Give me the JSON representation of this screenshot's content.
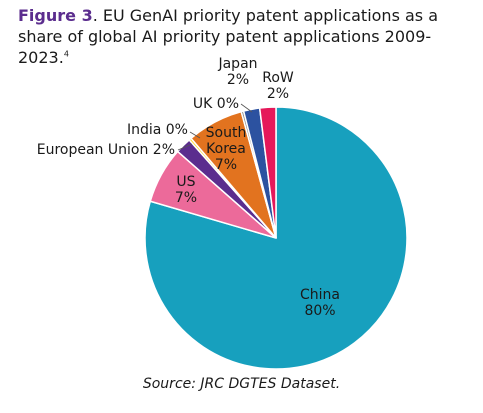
{
  "figure": {
    "label": "Figure 3",
    "title_rest": ". EU GenAI priority patent applications as a share of global AI priority patent applications 2009-2023.",
    "footnote_mark": "4",
    "source": "Source: JRC DGTES Dataset."
  },
  "chart_data": {
    "type": "pie",
    "title": "Figure 3. EU GenAI priority patent applications as a share of global AI priority patent applications 2009-2023.",
    "slices": [
      {
        "label": "China",
        "value": 80,
        "value_label": "80%",
        "color": "#17a0be"
      },
      {
        "label": "US",
        "value": 7,
        "value_label": "7%",
        "color": "#ec6a9a"
      },
      {
        "label": "European Union",
        "value": 2,
        "value_label": "2%",
        "color": "#5b2d8e"
      },
      {
        "label": "India",
        "value": 0.3,
        "value_label": "0%",
        "color": "#ffd617"
      },
      {
        "label": "South Korea",
        "value": 7,
        "value_label": "7%",
        "color": "#e2731f"
      },
      {
        "label": "UK",
        "value": 0.3,
        "value_label": "0%",
        "color": "#8a8a8a"
      },
      {
        "label": "Japan",
        "value": 2,
        "value_label": "2%",
        "color": "#2c52a0"
      },
      {
        "label": "RoW",
        "value": 2,
        "value_label": "2%",
        "color": "#e5185a"
      }
    ]
  }
}
